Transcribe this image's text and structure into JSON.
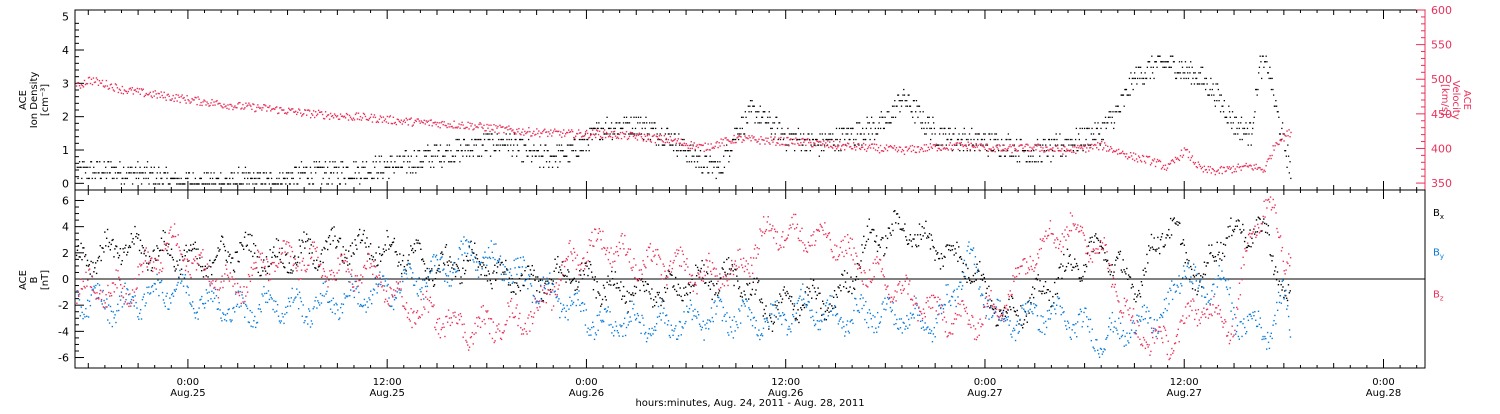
{
  "title": "",
  "x_axis": {
    "label": "hours:minutes, Aug. 24, 2011 - Aug. 28, 2011",
    "ticks": [
      {
        "time": "0:00",
        "date": "Aug.25",
        "hours": 24
      },
      {
        "time": "12:00",
        "date": "Aug.25",
        "hours": 36
      },
      {
        "time": "0:00",
        "date": "Aug.26",
        "hours": 48
      },
      {
        "time": "12:00",
        "date": "Aug.26",
        "hours": 60
      },
      {
        "time": "0:00",
        "date": "Aug.27",
        "hours": 72
      },
      {
        "time": "12:00",
        "date": "Aug.27",
        "hours": 84
      },
      {
        "time": "0:00",
        "date": "Aug.28",
        "hours": 96
      }
    ],
    "range_hours": [
      17.2,
      98.5
    ],
    "data_end_hours": 90.4
  },
  "colors": {
    "black": "#000000",
    "pink": "#e8315a",
    "blue": "#0a7bd8"
  },
  "chart_data": [
    {
      "type": "scatter",
      "panel": "top",
      "ylabel_left": [
        "ACE",
        "Ion Density",
        "[cm⁻³]"
      ],
      "ylabel_right": [
        "ACE",
        "Velocity",
        "[km/s]"
      ],
      "ylim_left": [
        -0.2,
        5.2
      ],
      "ylim_right": [
        340,
        600
      ],
      "yticks_left": [
        0,
        1,
        2,
        3,
        4,
        5
      ],
      "yticks_right": [
        350,
        400,
        450,
        500,
        550,
        600
      ],
      "series": [
        {
          "axis": "left",
          "color": "#000000",
          "points": [
            [
              17.3,
              0.35
            ],
            [
              19,
              0.4
            ],
            [
              21,
              0.3
            ],
            [
              23,
              0.1
            ],
            [
              25,
              0.05
            ],
            [
              27,
              0.1
            ],
            [
              29,
              0.05
            ],
            [
              31,
              0.3
            ],
            [
              33,
              0.35
            ],
            [
              35,
              0.45
            ],
            [
              37,
              0.6
            ],
            [
              39,
              0.9
            ],
            [
              41,
              1.1
            ],
            [
              43,
              1.3
            ],
            [
              45,
              0.8
            ],
            [
              47,
              0.9
            ],
            [
              49,
              1.7
            ],
            [
              51,
              1.8
            ],
            [
              53,
              1.4
            ],
            [
              55,
              0.6
            ],
            [
              56,
              0.4
            ],
            [
              57,
              1.6
            ],
            [
              58,
              2.2
            ],
            [
              60,
              1.4
            ],
            [
              62,
              1.2
            ],
            [
              64,
              1.5
            ],
            [
              66,
              1.8
            ],
            [
              67,
              2.6
            ],
            [
              69,
              1.5
            ],
            [
              71,
              1.3
            ],
            [
              73,
              1.2
            ],
            [
              75,
              0.9
            ],
            [
              77,
              1.2
            ],
            [
              79,
              1.6
            ],
            [
              80,
              2.2
            ],
            [
              81,
              3.2
            ],
            [
              82,
              3.5
            ],
            [
              83,
              3.6
            ],
            [
              84,
              3.4
            ],
            [
              85,
              3.2
            ],
            [
              86,
              2.6
            ],
            [
              87,
              1.8
            ],
            [
              88,
              1.5
            ],
            [
              88.5,
              3.5
            ],
            [
              89,
              3.6
            ],
            [
              89.5,
              2.2
            ],
            [
              90,
              1.2
            ],
            [
              90.4,
              0.4
            ]
          ]
        },
        {
          "axis": "right",
          "color": "#e8315a",
          "points": [
            [
              17.3,
              490
            ],
            [
              18,
              500
            ],
            [
              19,
              494
            ],
            [
              20,
              486
            ],
            [
              21,
              482
            ],
            [
              23,
              475
            ],
            [
              25,
              468
            ],
            [
              27,
              462
            ],
            [
              29,
              458
            ],
            [
              31,
              452
            ],
            [
              33,
              448
            ],
            [
              35,
              445
            ],
            [
              37,
              440
            ],
            [
              39,
              437
            ],
            [
              41,
              434
            ],
            [
              43,
              428
            ],
            [
              45,
              424
            ],
            [
              47,
              422
            ],
            [
              49,
              422
            ],
            [
              51,
              418
            ],
            [
              53,
              413
            ],
            [
              55,
              402
            ],
            [
              57,
              415
            ],
            [
              59,
              412
            ],
            [
              61,
              410
            ],
            [
              63,
              405
            ],
            [
              65,
              402
            ],
            [
              67,
              398
            ],
            [
              69,
              403
            ],
            [
              71,
              405
            ],
            [
              73,
              400
            ],
            [
              75,
              402
            ],
            [
              77,
              398
            ],
            [
              79,
              405
            ],
            [
              81,
              388
            ],
            [
              82,
              383
            ],
            [
              83,
              373
            ],
            [
              84,
              398
            ],
            [
              85,
              370
            ],
            [
              86,
              368
            ],
            [
              87,
              372
            ],
            [
              88,
              375
            ],
            [
              88.8,
              370
            ],
            [
              89.5,
              410
            ],
            [
              90.4,
              425
            ]
          ]
        }
      ]
    },
    {
      "type": "scatter",
      "panel": "bottom",
      "ylabel_left": [
        "ACE",
        "B",
        "[nT]"
      ],
      "ylim": [
        -6.8,
        6.8
      ],
      "yticks": [
        -6,
        -4,
        -2,
        0,
        2,
        4,
        6
      ],
      "legend": {
        "placement": "right",
        "entries": [
          "Bx",
          "By",
          "Bz"
        ]
      },
      "series": [
        {
          "name": "Bx",
          "color": "#000000",
          "points": [
            [
              17.3,
              1.5
            ],
            [
              20,
              2.5
            ],
            [
              23,
              2
            ],
            [
              25,
              1.2
            ],
            [
              27,
              2.4
            ],
            [
              29,
              1.5
            ],
            [
              31,
              2
            ],
            [
              33,
              2.5
            ],
            [
              35,
              2.5
            ],
            [
              37,
              2
            ],
            [
              39,
              0.8
            ],
            [
              41,
              1.5
            ],
            [
              43,
              0.2
            ],
            [
              45,
              -0.2
            ],
            [
              47,
              0.5
            ],
            [
              49,
              -0.5
            ],
            [
              51,
              -1
            ],
            [
              53,
              -0.8
            ],
            [
              55,
              0
            ],
            [
              57,
              0.2
            ],
            [
              59,
              -2.5
            ],
            [
              61,
              -1.5
            ],
            [
              63,
              -1.8
            ],
            [
              65,
              3
            ],
            [
              67,
              4
            ],
            [
              69,
              2.5
            ],
            [
              71,
              1.2
            ],
            [
              73,
              -2.8
            ],
            [
              75,
              -1.5
            ],
            [
              77,
              0.8
            ],
            [
              79,
              2.5
            ],
            [
              81,
              -0.8
            ],
            [
              83,
              4.5
            ],
            [
              84,
              2
            ],
            [
              85,
              -0.5
            ],
            [
              86,
              3
            ],
            [
              87,
              3.5
            ],
            [
              88,
              4
            ],
            [
              89,
              3.2
            ],
            [
              90,
              -1
            ],
            [
              90.4,
              -2.2
            ]
          ]
        },
        {
          "name": "By",
          "color": "#0a7bd8",
          "points": [
            [
              17.3,
              -1.5
            ],
            [
              20,
              -2
            ],
            [
              23,
              -0.5
            ],
            [
              25,
              -1.6
            ],
            [
              27,
              -2.5
            ],
            [
              29,
              -1.8
            ],
            [
              31,
              -2.2
            ],
            [
              33,
              -1.5
            ],
            [
              35,
              -1.2
            ],
            [
              37,
              -0.3
            ],
            [
              39,
              0.5
            ],
            [
              41,
              2
            ],
            [
              43,
              1.2
            ],
            [
              45,
              -0.5
            ],
            [
              47,
              -2
            ],
            [
              49,
              -3.5
            ],
            [
              51,
              -3.2
            ],
            [
              53,
              -3.4
            ],
            [
              55,
              -3
            ],
            [
              57,
              -2.8
            ],
            [
              59,
              -3.2
            ],
            [
              61,
              -2
            ],
            [
              63,
              -3
            ],
            [
              65,
              -2.5
            ],
            [
              67,
              -2.8
            ],
            [
              69,
              -3.5
            ],
            [
              71,
              1.5
            ],
            [
              73,
              -3.5
            ],
            [
              75,
              -2.5
            ],
            [
              77,
              -3
            ],
            [
              79,
              -4.5
            ],
            [
              81,
              -3.5
            ],
            [
              83,
              -2.5
            ],
            [
              84,
              1.5
            ],
            [
              85,
              -1.5
            ],
            [
              86,
              0.5
            ],
            [
              87,
              -2.8
            ],
            [
              88,
              -3.5
            ],
            [
              89,
              -3.8
            ],
            [
              90,
              -1.5
            ],
            [
              90.4,
              -4
            ]
          ]
        },
        {
          "name": "Bz",
          "color": "#e8315a",
          "points": [
            [
              17.3,
              -0.5
            ],
            [
              20,
              -1
            ],
            [
              23,
              2.8
            ],
            [
              25,
              0.5
            ],
            [
              27,
              -0.5
            ],
            [
              29,
              1.5
            ],
            [
              31,
              1.5
            ],
            [
              33,
              0.5
            ],
            [
              35,
              0.5
            ],
            [
              37,
              -2
            ],
            [
              39,
              -2.8
            ],
            [
              41,
              -3.8
            ],
            [
              43,
              -3.2
            ],
            [
              45,
              -2.5
            ],
            [
              47,
              1.5
            ],
            [
              49,
              3
            ],
            [
              51,
              1.2
            ],
            [
              53,
              1.2
            ],
            [
              55,
              0.3
            ],
            [
              57,
              0.5
            ],
            [
              59,
              3.8
            ],
            [
              61,
              3.5
            ],
            [
              63,
              2.8
            ],
            [
              65,
              0.5
            ],
            [
              67,
              -1
            ],
            [
              69,
              -2.5
            ],
            [
              71,
              -3.2
            ],
            [
              73,
              -2
            ],
            [
              75,
              2.5
            ],
            [
              77,
              4
            ],
            [
              79,
              2.2
            ],
            [
              81,
              -4
            ],
            [
              83,
              -5
            ],
            [
              84,
              -3.2
            ],
            [
              85,
              -2
            ],
            [
              86,
              -2.8
            ],
            [
              87,
              -3.5
            ],
            [
              88,
              4
            ],
            [
              89,
              6
            ],
            [
              90,
              2
            ],
            [
              90.4,
              2.5
            ]
          ]
        }
      ]
    }
  ]
}
